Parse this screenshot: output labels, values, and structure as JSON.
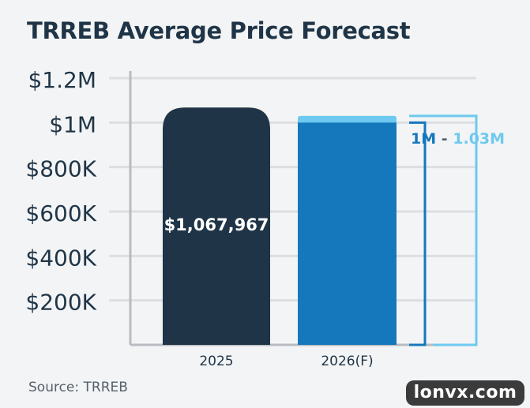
{
  "chart_data": {
    "type": "bar",
    "title": "TRREB Average Price Forecast",
    "categories": [
      "2025",
      "2026(F)"
    ],
    "y_ticks": [
      {
        "value": 200000,
        "label": "$200K"
      },
      {
        "value": 400000,
        "label": "$400K"
      },
      {
        "value": 600000,
        "label": "$600K"
      },
      {
        "value": 800000,
        "label": "$800K"
      },
      {
        "value": 1000000,
        "label": "$1M"
      },
      {
        "value": 1200000,
        "label": "$1.2M"
      }
    ],
    "ylim": [
      0,
      1200000
    ],
    "grid": true,
    "bars": [
      {
        "category": "2025",
        "value": 1067967,
        "label": "$1,067,967",
        "color": "#1f3547"
      },
      {
        "category": "2026(F)",
        "value_low": 1000000,
        "value_high": 1030000,
        "color_low": "#1578bd",
        "color_high": "#6dc9f0"
      }
    ],
    "range_annotation": {
      "low_label": "1M",
      "separator": "-",
      "high_label": "1.03M",
      "low_color": "#1578bd",
      "high_color": "#6dc9f0"
    }
  },
  "source": "Source: TRREB",
  "watermark": "lonvx.com",
  "colors": {
    "grid": "#dcdfe2",
    "axis": "#b8bcc0",
    "text": "#1f3547"
  }
}
